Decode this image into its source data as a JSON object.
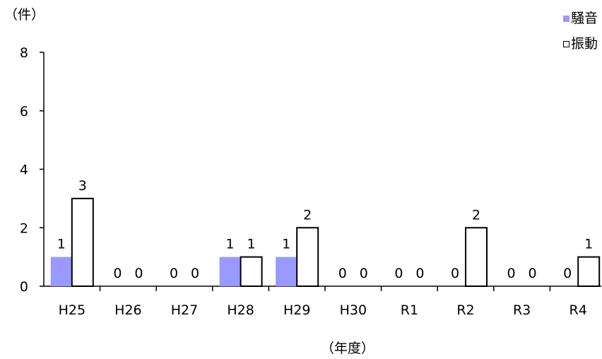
{
  "chart_data": {
    "type": "bar",
    "title": "",
    "ylabel": "（件）",
    "xlabel": "（年度）",
    "categories": [
      "H25",
      "H26",
      "H27",
      "H28",
      "H29",
      "H30",
      "R1",
      "R2",
      "R3",
      "R4"
    ],
    "series": [
      {
        "name": "騒音",
        "values": [
          1,
          0,
          0,
          1,
          1,
          0,
          0,
          0,
          0,
          0
        ],
        "color": "#9999ff"
      },
      {
        "name": "振動",
        "values": [
          3,
          0,
          0,
          1,
          2,
          0,
          0,
          2,
          0,
          1
        ],
        "color": "#ffffff"
      }
    ],
    "ylim": [
      0,
      8
    ],
    "yticks": [
      0,
      2,
      4,
      6,
      8
    ],
    "grid": false,
    "legend": "top-right",
    "data_labels": true
  }
}
